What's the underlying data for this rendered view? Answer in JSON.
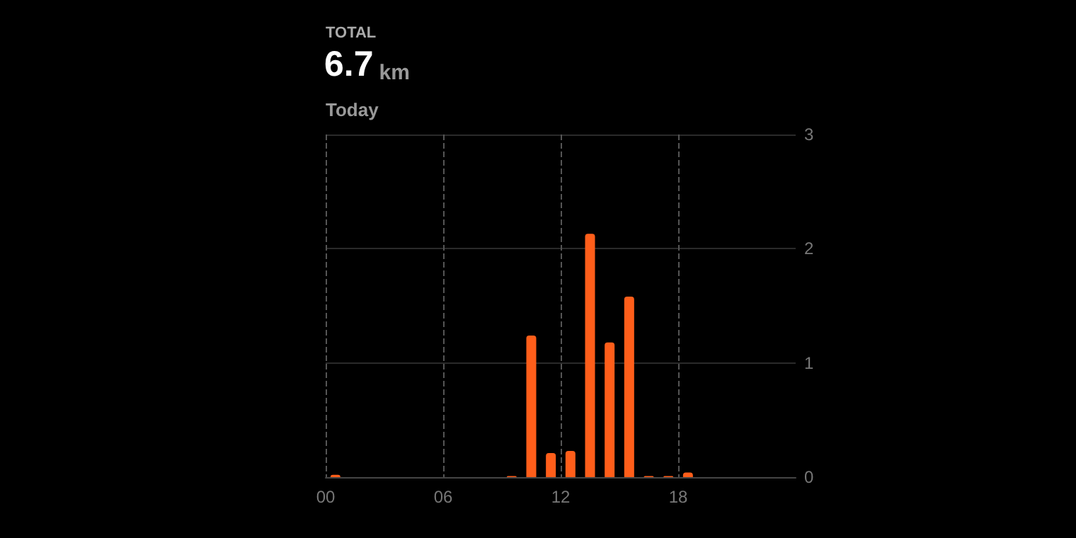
{
  "chart_data": {
    "type": "bar",
    "title": "TOTAL",
    "subtitle": "6.7",
    "annotations": [
      "km",
      "Today"
    ],
    "x": [
      0.5,
      9.5,
      10.5,
      11.5,
      12.5,
      13.5,
      14.5,
      15.5,
      16.5,
      17.5,
      18.5
    ],
    "values": [
      0.02,
      0.01,
      1.24,
      0.21,
      0.23,
      2.13,
      1.18,
      1.58,
      0.01,
      0.01,
      0.04
    ],
    "color": "#ff5e1a",
    "xlim": [
      0,
      24
    ],
    "xticks": [
      {
        "value": 0,
        "label": "00"
      },
      {
        "value": 6,
        "label": "06"
      },
      {
        "value": 12,
        "label": "12"
      },
      {
        "value": 18,
        "label": "18"
      }
    ],
    "ylim": [
      0,
      3
    ],
    "yticks": [
      0,
      1,
      2,
      3
    ],
    "grid": true
  }
}
